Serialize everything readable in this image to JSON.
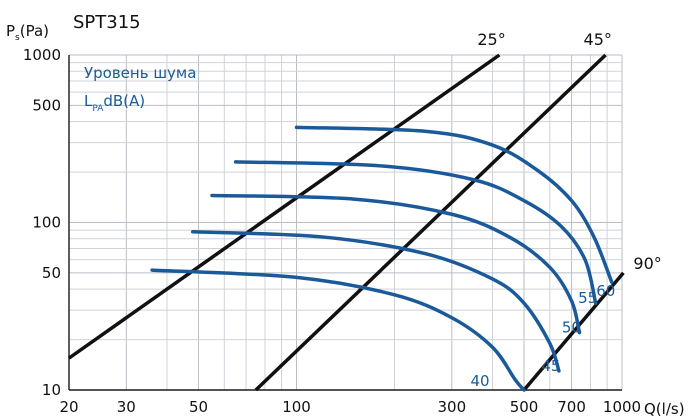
{
  "chart_data": {
    "type": "line",
    "title": "SPT315",
    "ylabel": {
      "main": "P",
      "sub": "s",
      "unit": "(Pa)"
    },
    "xlabel": "Q(l/s)",
    "x_scale": "log",
    "y_scale": "log",
    "xlim": [
      20,
      1000
    ],
    "ylim": [
      10,
      1000
    ],
    "x_ticks": [
      20,
      30,
      50,
      100,
      300,
      500,
      700,
      1000
    ],
    "y_ticks": [
      10,
      50,
      100,
      500,
      1000
    ],
    "legend": {
      "line1": "Уровень шума",
      "line2_prefix": "L",
      "line2_sub": "PA",
      "line2_suffix": "dB(A)",
      "placement": "top-left"
    },
    "colors": {
      "curve": "#1a5a9a",
      "diagonal": "#111111",
      "grid": "#cfd3d8"
    },
    "angle_lines": [
      {
        "label": "25°",
        "points": [
          [
            20,
            15.5
          ],
          [
            420,
            1000
          ]
        ]
      },
      {
        "label": "45°",
        "points": [
          [
            75,
            10
          ],
          [
            890,
            1000
          ]
        ]
      },
      {
        "label": "90°",
        "points": [
          [
            500,
            10
          ],
          [
            1010,
            50
          ]
        ]
      }
    ],
    "series": [
      {
        "name": "40",
        "points": [
          [
            36,
            52
          ],
          [
            100,
            47
          ],
          [
            200,
            37
          ],
          [
            300,
            27
          ],
          [
            400,
            18
          ],
          [
            470,
            11.5
          ],
          [
            500,
            10
          ]
        ]
      },
      {
        "name": "45",
        "points": [
          [
            48,
            88
          ],
          [
            120,
            82
          ],
          [
            250,
            65
          ],
          [
            400,
            46
          ],
          [
            500,
            33
          ],
          [
            600,
            19
          ],
          [
            640,
            13
          ]
        ]
      },
      {
        "name": "50",
        "points": [
          [
            55,
            145
          ],
          [
            150,
            138
          ],
          [
            300,
            112
          ],
          [
            450,
            82
          ],
          [
            600,
            54
          ],
          [
            700,
            34
          ],
          [
            740,
            22
          ]
        ]
      },
      {
        "name": "55",
        "points": [
          [
            65,
            230
          ],
          [
            180,
            218
          ],
          [
            350,
            180
          ],
          [
            500,
            135
          ],
          [
            650,
            95
          ],
          [
            770,
            60
          ],
          [
            830,
            33
          ]
        ]
      },
      {
        "name": "60",
        "points": [
          [
            100,
            370
          ],
          [
            250,
            350
          ],
          [
            400,
            290
          ],
          [
            550,
            205
          ],
          [
            700,
            135
          ],
          [
            820,
            82
          ],
          [
            930,
            44
          ]
        ]
      }
    ]
  }
}
